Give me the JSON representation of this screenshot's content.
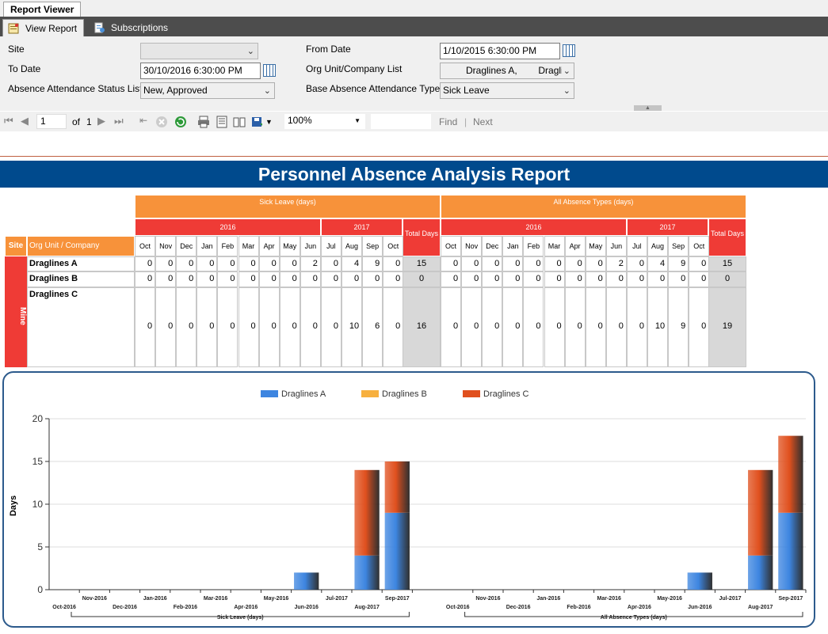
{
  "tabs": {
    "report_viewer": "Report Viewer",
    "view_report": "View Report",
    "subscriptions": "Subscriptions"
  },
  "params": {
    "site_label": "Site",
    "site_value": "",
    "to_date_label": "To Date",
    "to_date_value": "30/10/2016 6:30:00 PM",
    "status_label": "Absence Attendance Status List",
    "status_value": "New, Approved",
    "from_date_label": "From Date",
    "from_date_value": "1/10/2015 6:30:00 PM",
    "org_label": "Org Unit/Company List",
    "org_value": "Draglines A,        Draglir",
    "type_label": "Base Absence Attendance Type",
    "type_value": "Sick Leave"
  },
  "toolbar": {
    "page": "1",
    "of": "of",
    "total": "1",
    "zoom": "100%",
    "find": "Find",
    "sep": "|",
    "next": "Next"
  },
  "report": {
    "title": "Personnel Absence Analysis Report",
    "group1": "Sick Leave (days)",
    "group2": "All Absence Types (days)",
    "year1": "2016",
    "year2": "2017",
    "total_days": "Total Days",
    "site_header": "Site",
    "org_header": "Org Unit / Company",
    "months": [
      "Oct",
      "Nov",
      "Dec",
      "Jan",
      "Feb",
      "Mar",
      "Apr",
      "May",
      "Jun",
      "Jul",
      "Aug",
      "Sep",
      "Oct"
    ],
    "site": "Mine",
    "rows": [
      {
        "name": "Draglines A",
        "sick": [
          "0",
          "0",
          "0",
          "0",
          "0",
          "0",
          "0",
          "0",
          "2",
          "0",
          "4",
          "9",
          "0"
        ],
        "sick_total": "15",
        "all": [
          "0",
          "0",
          "0",
          "0",
          "0",
          "0",
          "0",
          "0",
          "2",
          "0",
          "4",
          "9",
          "0"
        ],
        "all_total": "15"
      },
      {
        "name": "Draglines B",
        "sick": [
          "0",
          "0",
          "0",
          "0",
          "0",
          "0",
          "0",
          "0",
          "0",
          "0",
          "0",
          "0",
          "0"
        ],
        "sick_total": "0",
        "all": [
          "0",
          "0",
          "0",
          "0",
          "0",
          "0",
          "0",
          "0",
          "0",
          "0",
          "0",
          "0",
          "0"
        ],
        "all_total": "0"
      },
      {
        "name": "Draglines C",
        "sick": [
          "0",
          "0",
          "0",
          "0",
          "0",
          "0",
          "0",
          "0",
          "0",
          "0",
          "10",
          "6",
          "0"
        ],
        "sick_total": "16",
        "all": [
          "0",
          "0",
          "0",
          "0",
          "0",
          "0",
          "0",
          "0",
          "0",
          "0",
          "10",
          "9",
          "0"
        ],
        "all_total": "19"
      }
    ]
  },
  "chart_data": {
    "type": "bar",
    "stacked": true,
    "ylabel": "Days",
    "ylim": [
      0,
      20
    ],
    "yticks": [
      0,
      5,
      10,
      15,
      20
    ],
    "legend_position": "top",
    "groups": [
      "Sick Leave (days)",
      "All Absence Types (days)"
    ],
    "categories": [
      "Oct-2016",
      "Nov-2016",
      "Dec-2016",
      "Jan-2016",
      "Feb-2016",
      "Mar-2016",
      "Apr-2016",
      "May-2016",
      "Jun-2016",
      "Jul-2017",
      "Aug-2017",
      "Sep-2017"
    ],
    "series": [
      {
        "name": "Draglines A",
        "color": "#3d85e0",
        "values": [
          [
            0,
            0,
            0,
            0,
            0,
            0,
            0,
            0,
            2,
            0,
            4,
            9
          ],
          [
            0,
            0,
            0,
            0,
            0,
            0,
            0,
            0,
            2,
            0,
            4,
            9
          ]
        ]
      },
      {
        "name": "Draglines B",
        "color": "#f7b03f",
        "values": [
          [
            0,
            0,
            0,
            0,
            0,
            0,
            0,
            0,
            0,
            0,
            0,
            0
          ],
          [
            0,
            0,
            0,
            0,
            0,
            0,
            0,
            0,
            0,
            0,
            0,
            0
          ]
        ]
      },
      {
        "name": "Draglines C",
        "color": "#e0501e",
        "values": [
          [
            0,
            0,
            0,
            0,
            0,
            0,
            0,
            0,
            0,
            0,
            10,
            6
          ],
          [
            0,
            0,
            0,
            0,
            0,
            0,
            0,
            0,
            0,
            0,
            10,
            9
          ]
        ]
      }
    ]
  },
  "colors": {
    "banner": "#004a8d",
    "orange": "#f7923a",
    "red": "#ef3b36",
    "grey": "#d8d8d8"
  }
}
